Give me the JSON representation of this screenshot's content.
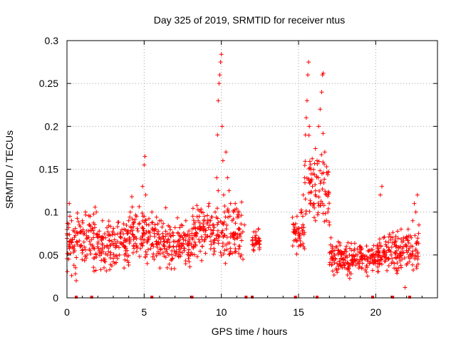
{
  "chart_data": {
    "type": "scatter",
    "title": "Day 325 of 2019, SRMTID for receiver ntus",
    "xlabel": "GPS time / hours",
    "ylabel": "SRMTID / TECUs",
    "xlim": [
      0,
      24
    ],
    "ylim": [
      0,
      0.3
    ],
    "x_ticks": [
      0,
      5,
      10,
      15,
      20
    ],
    "y_ticks": [
      0,
      0.05,
      0.1,
      0.15,
      0.2,
      0.25,
      0.3
    ],
    "x_tick_labels": [
      "0",
      "5",
      "10",
      "15",
      "20"
    ],
    "y_tick_labels": [
      "0",
      "0.05",
      "0.1",
      "0.15",
      "0.2",
      "0.25",
      "0.3"
    ],
    "grid": true,
    "grid_style": "dotted",
    "marker": "plus",
    "color": "#ff0000",
    "series": [
      {
        "values_at_x": [
          [
            0.0,
            0.075
          ],
          [
            0.1,
            0.082
          ],
          [
            0.15,
            0.11
          ],
          [
            0.2,
            0.06
          ],
          [
            0.3,
            0.09
          ],
          [
            0.35,
            0.068
          ],
          [
            0.45,
            0.038
          ],
          [
            0.5,
            0.055
          ],
          [
            0.55,
            0.028
          ],
          [
            0.6,
            0.02
          ],
          [
            0.7,
            0.075
          ],
          [
            0.8,
            0.085
          ],
          [
            0.9,
            0.06
          ],
          [
            1.0,
            0.09
          ],
          [
            1.1,
            0.065
          ],
          [
            1.2,
            0.1
          ],
          [
            1.3,
            0.05
          ],
          [
            1.4,
            0.078
          ],
          [
            1.5,
            0.095
          ],
          [
            1.6,
            0.068
          ],
          [
            1.7,
            0.058
          ],
          [
            1.8,
            0.082
          ],
          [
            1.9,
            0.1
          ],
          [
            2.0,
            0.063
          ],
          [
            2.1,
            0.072
          ],
          [
            2.2,
            0.057
          ],
          [
            2.3,
            0.09
          ],
          [
            2.4,
            0.035
          ],
          [
            2.5,
            0.07
          ],
          [
            2.6,
            0.06
          ],
          [
            2.7,
            0.084
          ],
          [
            2.8,
            0.05
          ],
          [
            2.9,
            0.066
          ],
          [
            3.0,
            0.042
          ],
          [
            3.1,
            0.074
          ],
          [
            3.2,
            0.06
          ],
          [
            3.3,
            0.088
          ],
          [
            3.4,
            0.05
          ],
          [
            3.5,
            0.07
          ],
          [
            3.6,
            0.062
          ],
          [
            3.7,
            0.08
          ],
          [
            3.8,
            0.055
          ],
          [
            3.9,
            0.075
          ],
          [
            4.0,
            0.09
          ],
          [
            4.1,
            0.1
          ],
          [
            4.2,
            0.118
          ],
          [
            4.3,
            0.083
          ],
          [
            4.4,
            0.07
          ],
          [
            4.5,
            0.06
          ],
          [
            4.6,
            0.078
          ],
          [
            4.7,
            0.087
          ],
          [
            4.8,
            0.068
          ],
          [
            4.9,
            0.13
          ],
          [
            5.0,
            0.155
          ],
          [
            5.05,
            0.165
          ],
          [
            5.1,
            0.12
          ],
          [
            5.2,
            0.04
          ],
          [
            5.3,
            0.085
          ],
          [
            5.4,
            0.072
          ],
          [
            5.5,
            0.1
          ],
          [
            5.6,
            0.06
          ],
          [
            5.7,
            0.08
          ],
          [
            5.8,
            0.094
          ],
          [
            5.9,
            0.052
          ],
          [
            6.0,
            0.07
          ],
          [
            6.1,
            0.09
          ],
          [
            6.2,
            0.075
          ],
          [
            6.3,
            0.06
          ],
          [
            6.4,
            0.105
          ],
          [
            6.5,
            0.065
          ],
          [
            6.6,
            0.05
          ],
          [
            6.7,
            0.072
          ],
          [
            6.8,
            0.045
          ],
          [
            6.9,
            0.06
          ],
          [
            7.0,
            0.082
          ],
          [
            7.1,
            0.052
          ],
          [
            7.2,
            0.075
          ],
          [
            7.3,
            0.06
          ],
          [
            7.4,
            0.085
          ],
          [
            7.5,
            0.07
          ],
          [
            7.6,
            0.055
          ],
          [
            7.7,
            0.09
          ],
          [
            7.8,
            0.062
          ],
          [
            7.9,
            0.078
          ],
          [
            8.0,
            0.05
          ],
          [
            8.1,
            0.07
          ],
          [
            8.2,
            0.06
          ],
          [
            8.3,
            0.088
          ],
          [
            8.4,
            0.075
          ],
          [
            8.5,
            0.09
          ],
          [
            8.6,
            0.065
          ],
          [
            8.7,
            0.1
          ],
          [
            8.8,
            0.08
          ],
          [
            8.9,
            0.095
          ],
          [
            9.0,
            0.07
          ],
          [
            9.1,
            0.088
          ],
          [
            9.2,
            0.11
          ],
          [
            9.3,
            0.09
          ],
          [
            9.4,
            0.075
          ],
          [
            9.5,
            0.085
          ],
          [
            9.6,
            0.1
          ],
          [
            9.7,
            0.14
          ],
          [
            9.75,
            0.19
          ],
          [
            9.8,
            0.23
          ],
          [
            9.85,
            0.25
          ],
          [
            9.9,
            0.26
          ],
          [
            9.95,
            0.275
          ],
          [
            10.0,
            0.284
          ],
          [
            10.05,
            0.2
          ],
          [
            10.1,
            0.16
          ],
          [
            10.15,
            0.12
          ],
          [
            10.2,
            0.1
          ],
          [
            10.3,
            0.17
          ],
          [
            10.4,
            0.14
          ],
          [
            10.5,
            0.125
          ],
          [
            10.6,
            0.11
          ],
          [
            10.7,
            0.09
          ],
          [
            10.8,
            0.1
          ],
          [
            10.9,
            0.11
          ],
          [
            11.0,
            0.07
          ],
          [
            11.1,
            0.08
          ],
          [
            11.2,
            0.06
          ],
          [
            11.3,
            0.05
          ],
          [
            11.4,
            0.045
          ],
          [
            11.5,
            0.085
          ],
          [
            12.0,
            0.062
          ],
          [
            12.1,
            0.055
          ],
          [
            12.2,
            0.07
          ],
          [
            12.3,
            0.065
          ],
          [
            12.4,
            0.08
          ],
          [
            14.7,
            0.08
          ],
          [
            14.8,
            0.068
          ],
          [
            14.9,
            0.095
          ],
          [
            15.0,
            0.06
          ],
          [
            15.1,
            0.075
          ],
          [
            15.2,
            0.1
          ],
          [
            15.3,
            0.12
          ],
          [
            15.4,
            0.14
          ],
          [
            15.45,
            0.19
          ],
          [
            15.5,
            0.21
          ],
          [
            15.55,
            0.23
          ],
          [
            15.6,
            0.26
          ],
          [
            15.65,
            0.275
          ],
          [
            15.7,
            0.2
          ],
          [
            15.8,
            0.15
          ],
          [
            15.9,
            0.13
          ],
          [
            16.0,
            0.11
          ],
          [
            16.1,
            0.09
          ],
          [
            16.2,
            0.16
          ],
          [
            16.3,
            0.2
          ],
          [
            16.4,
            0.22
          ],
          [
            16.5,
            0.24
          ],
          [
            16.55,
            0.26
          ],
          [
            16.6,
            0.262
          ],
          [
            16.7,
            0.17
          ],
          [
            16.8,
            0.12
          ],
          [
            16.9,
            0.1
          ],
          [
            17.0,
            0.085
          ],
          [
            17.1,
            0.07
          ],
          [
            17.2,
            0.06
          ],
          [
            17.3,
            0.05
          ],
          [
            17.4,
            0.045
          ],
          [
            17.5,
            0.04
          ],
          [
            17.6,
            0.055
          ],
          [
            17.7,
            0.038
          ],
          [
            17.8,
            0.05
          ],
          [
            17.9,
            0.045
          ],
          [
            18.0,
            0.035
          ],
          [
            18.1,
            0.06
          ],
          [
            18.2,
            0.04
          ],
          [
            18.3,
            0.05
          ],
          [
            18.4,
            0.028
          ],
          [
            18.5,
            0.045
          ],
          [
            18.6,
            0.055
          ],
          [
            18.7,
            0.038
          ],
          [
            18.8,
            0.05
          ],
          [
            18.9,
            0.042
          ],
          [
            19.0,
            0.06
          ],
          [
            19.1,
            0.035
          ],
          [
            19.2,
            0.05
          ],
          [
            19.3,
            0.045
          ],
          [
            19.4,
            0.03
          ],
          [
            19.5,
            0.055
          ],
          [
            19.6,
            0.04
          ],
          [
            19.7,
            0.05
          ],
          [
            19.8,
            0.032
          ],
          [
            19.9,
            0.045
          ],
          [
            20.0,
            0.04
          ],
          [
            20.1,
            0.06
          ],
          [
            20.2,
            0.055
          ],
          [
            20.3,
            0.12
          ],
          [
            20.4,
            0.13
          ],
          [
            20.5,
            0.07
          ],
          [
            20.6,
            0.05
          ],
          [
            20.7,
            0.06
          ],
          [
            20.8,
            0.045
          ],
          [
            20.9,
            0.055
          ],
          [
            21.0,
            0.05
          ],
          [
            21.1,
            0.07
          ],
          [
            21.2,
            0.04
          ],
          [
            21.3,
            0.06
          ],
          [
            21.4,
            0.05
          ],
          [
            21.5,
            0.035
          ],
          [
            21.6,
            0.06
          ],
          [
            21.7,
            0.045
          ],
          [
            21.8,
            0.07
          ],
          [
            21.9,
            0.012
          ],
          [
            22.0,
            0.06
          ],
          [
            22.1,
            0.08
          ],
          [
            22.2,
            0.05
          ],
          [
            22.3,
            0.07
          ],
          [
            22.4,
            0.09
          ],
          [
            22.5,
            0.11
          ],
          [
            22.6,
            0.1
          ],
          [
            22.7,
            0.12
          ],
          [
            22.8,
            0.085
          ]
        ],
        "bands": [
          {
            "x": [
              0,
              2
            ],
            "min": 0.02,
            "max": 0.115
          },
          {
            "x": [
              2,
              4
            ],
            "min": 0.022,
            "max": 0.1
          },
          {
            "x": [
              4,
              6
            ],
            "min": 0.03,
            "max": 0.12
          },
          {
            "x": [
              6,
              8
            ],
            "min": 0.025,
            "max": 0.1
          },
          {
            "x": [
              8,
              9.7
            ],
            "min": 0.035,
            "max": 0.12
          },
          {
            "x": [
              9.7,
              11.4
            ],
            "min": 0.03,
            "max": 0.13
          },
          {
            "x": [
              12,
              12.5
            ],
            "min": 0.045,
            "max": 0.09
          },
          {
            "x": [
              14.6,
              15.4
            ],
            "min": 0.045,
            "max": 0.11
          },
          {
            "x": [
              15.4,
              17
            ],
            "min": 0.05,
            "max": 0.2
          },
          {
            "x": [
              17,
              20.2
            ],
            "min": 0.02,
            "max": 0.07
          },
          {
            "x": [
              20.2,
              22.8
            ],
            "min": 0.02,
            "max": 0.09
          }
        ]
      }
    ],
    "zero_marks_x": [
      0.6,
      1.6,
      5.5,
      8.1,
      11.6,
      12.0,
      14.8,
      16.2,
      19.8,
      21.1,
      22.2
    ]
  }
}
